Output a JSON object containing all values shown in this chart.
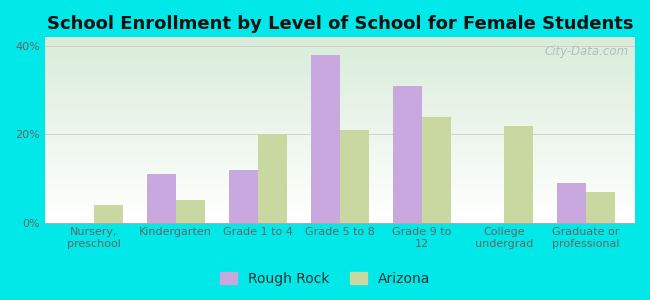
{
  "title": "School Enrollment by Level of School for Female Students",
  "categories": [
    "Nursery,\npreschool",
    "Kindergarten",
    "Grade 1 to 4",
    "Grade 5 to 8",
    "Grade 9 to\n12",
    "College\nundergrad",
    "Graduate or\nprofessional"
  ],
  "rough_rock": [
    0,
    11,
    12,
    38,
    31,
    0,
    9
  ],
  "arizona": [
    4,
    5,
    20,
    21,
    24,
    22,
    7
  ],
  "rough_rock_color": "#c9a8e0",
  "arizona_color": "#c8d8a0",
  "bar_width": 0.35,
  "ylim": [
    0,
    42
  ],
  "yticks": [
    0,
    20,
    40
  ],
  "ytick_labels": [
    "0%",
    "20%",
    "40%"
  ],
  "background_color": "#00e8e8",
  "plot_bg_bottom_left": "#ffffff",
  "plot_bg_top_right": "#d8edd8",
  "title_fontsize": 13,
  "tick_fontsize": 8,
  "legend_fontsize": 10,
  "watermark_text": "City-Data.com",
  "watermark_color": "#b0bfc8",
  "axis_color": "#aaaaaa",
  "tick_color": "#666666",
  "grid_color": "#cccccc"
}
